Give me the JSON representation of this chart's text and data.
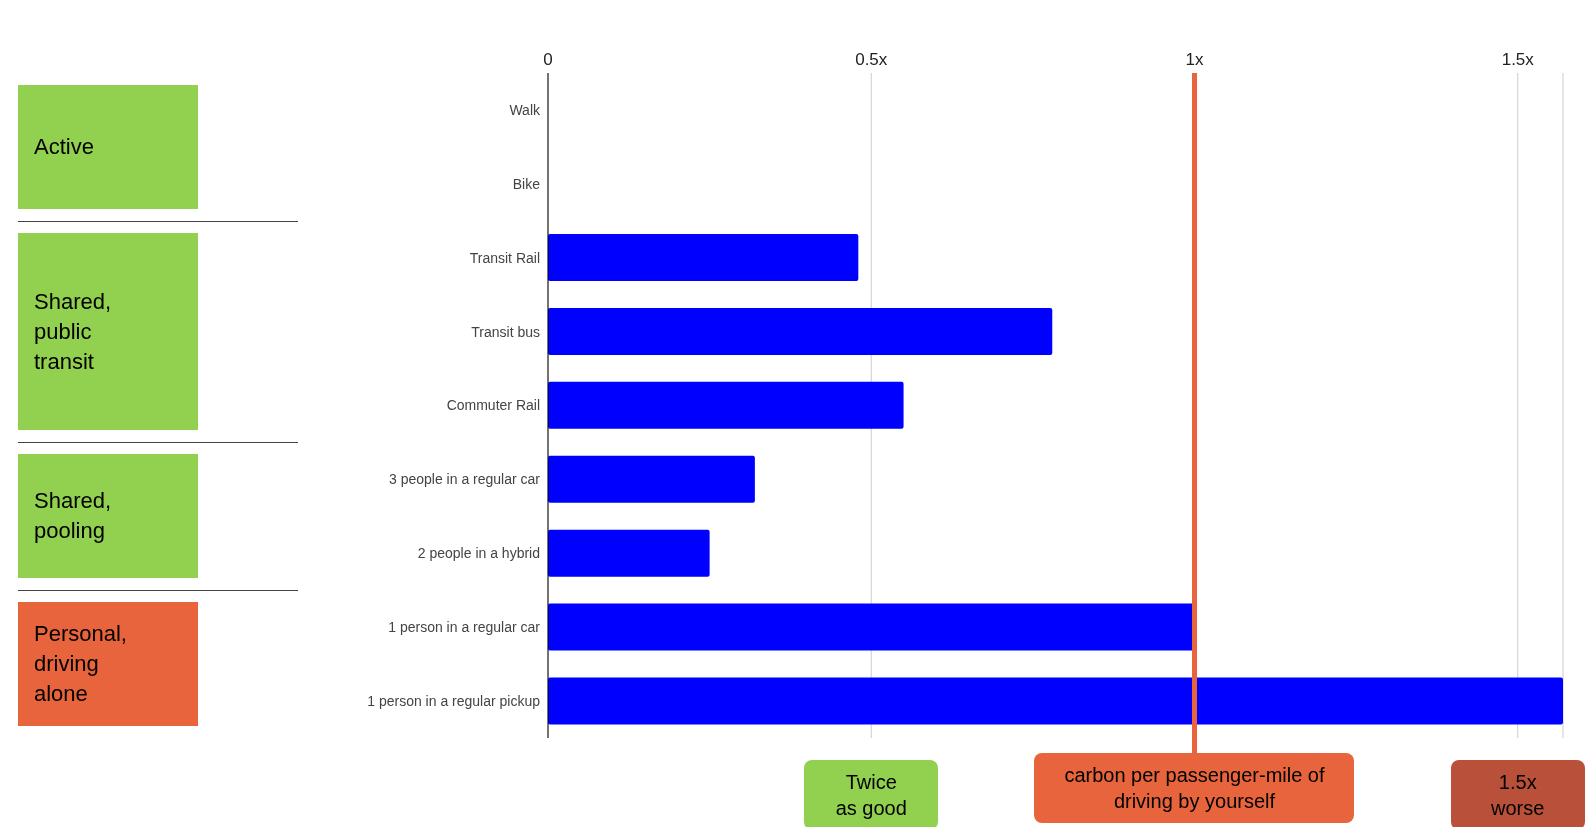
{
  "chart_data": {
    "type": "bar",
    "orientation": "horizontal",
    "categories": [
      "Walk",
      "Bike",
      "Transit Rail",
      "Transit bus",
      "Commuter Rail",
      "3 people in a regular car",
      "2 people in a hybrid",
      "1 person in a regular car",
      "1 person in a regular pickup"
    ],
    "values": [
      0,
      0,
      0.48,
      0.78,
      0.55,
      0.32,
      0.25,
      1.0,
      1.57
    ],
    "color": "#0000ff",
    "xlim": [
      0,
      1.57
    ],
    "xticks": [
      0,
      {
        "value": 0.5,
        "label": "0.5x"
      },
      {
        "value": 1,
        "label": "1x"
      },
      {
        "value": 1.5,
        "label": "1.5x"
      }
    ],
    "grid": "x",
    "ref_lines": [
      {
        "axis": "x",
        "value": 1,
        "label": "carbon per passenger-mile of driving by yourself",
        "color": "#e8643c"
      }
    ],
    "annotations": [
      "Active",
      "Shared, public transit",
      "Shared, pooling",
      "Personal, driving alone",
      "Twice as good",
      "1.5x worse"
    ]
  }
}
